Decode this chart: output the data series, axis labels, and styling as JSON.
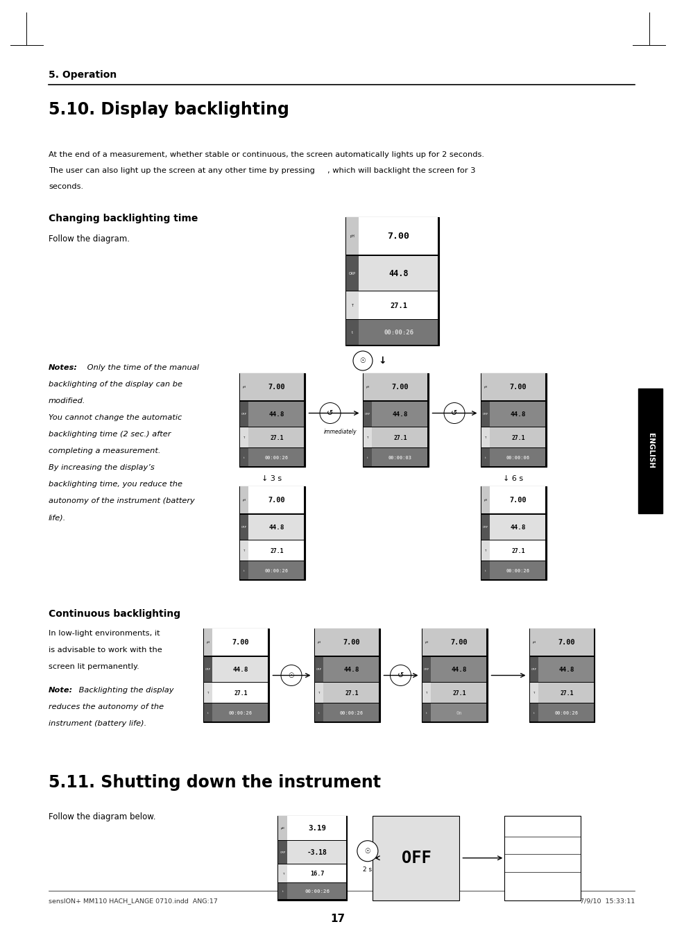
{
  "page_width": 9.54,
  "page_height": 13.1,
  "bg_color": "#ffffff",
  "header_section": "5. Operation",
  "section_title": "5.10. Display backlighting",
  "body_line1": "At the end of a measurement, whether stable or continuous, the screen automatically lights up for 2 seconds.",
  "body_line2": "The user can also light up the screen at any other time by pressing     , which will backlight the screen for 3",
  "body_line3": "seconds.",
  "subsection1_title": "Changing backlighting time",
  "subsection1_text": "Follow the diagram.",
  "notes_bold": "Notes:",
  "notes_italic": " Only the time of the manual\nbacklighting of the display can be\nmodified.\nYou cannot change the automatic\nbacklighting time (2 sec.) after\ncompleting a measurement.\nBy increasing the display’s\nbacklighting time, you reduce the\nautonomy of the instrument (battery\nlife).",
  "subsection2_title": "Continuous backlighting",
  "subsection2_text": "In low-light environments, it\nis advisable to work with the\nscreen lit permanently.",
  "note2_bold": "Note:",
  "note2_italic": " Backlighting the display\nreduces the autonomy of the\ninstrument (battery life).",
  "section2_title": "5.11. Shutting down the instrument",
  "section2_text": "Follow the diagram below.",
  "footer_left": "sensION+ MM110 HACH_LANGE 0710.indd  ANG:17",
  "footer_right": "7/9/10  15:33:11",
  "page_number": "17",
  "english_tab": "ENGLISH",
  "arrow_3s": "↓ 3 s",
  "arrow_6s": "↓ 6 s",
  "immediately_label": "immediately",
  "lcd_white": "#ffffff",
  "lcd_gray": "#b8b8b8",
  "lcd_dark_header": "#888888",
  "lcd_time_bg": "#aaaaaa",
  "lcd_time_text": "#e0e0e0",
  "lcd_border": "#000000",
  "lcd_row_sep": "#555555"
}
